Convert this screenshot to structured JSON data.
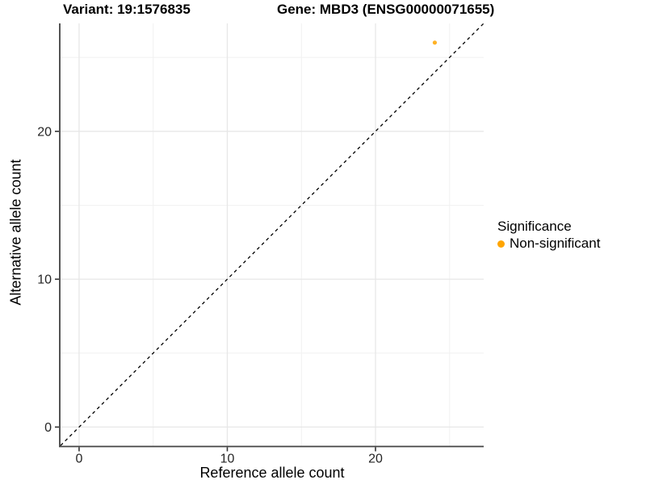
{
  "chart_data": {
    "type": "scatter",
    "title_left": "Variant: 19:1576835",
    "title_right": "Gene: MBD3 (ENSG00000071655)",
    "xlabel": "Reference allele count",
    "ylabel": "Alternative allele count",
    "xlim": [
      -1.25,
      27.3
    ],
    "ylim": [
      -1.26,
      27.3
    ],
    "x_ticks": [
      0,
      10,
      20
    ],
    "y_ticks": [
      0,
      10,
      20
    ],
    "x_minor_ticks": [
      5,
      15,
      25
    ],
    "y_minor_ticks": [
      5,
      15,
      25
    ],
    "grid": "major and minor gridlines, light gray on white, no panel border",
    "legend_position": "right",
    "reference_line": {
      "type": "identity y=x",
      "style": "dashed",
      "color": "#000000"
    },
    "series": [
      {
        "name": "Non-significant",
        "color": "#FFA500",
        "point_opacity": 0.85,
        "points": [
          {
            "x": 24,
            "y": 26
          }
        ]
      }
    ],
    "legend": {
      "title": "Significance",
      "items": [
        {
          "label": "Non-significant",
          "color": "#FFA500"
        }
      ]
    },
    "style_colors": {
      "axis_line": "#424242",
      "tick_mark": "#333333",
      "tick_label": "#262626",
      "major_grid": "#e7e7e7",
      "minor_grid": "#f1f1f1",
      "background": "#ffffff"
    }
  }
}
